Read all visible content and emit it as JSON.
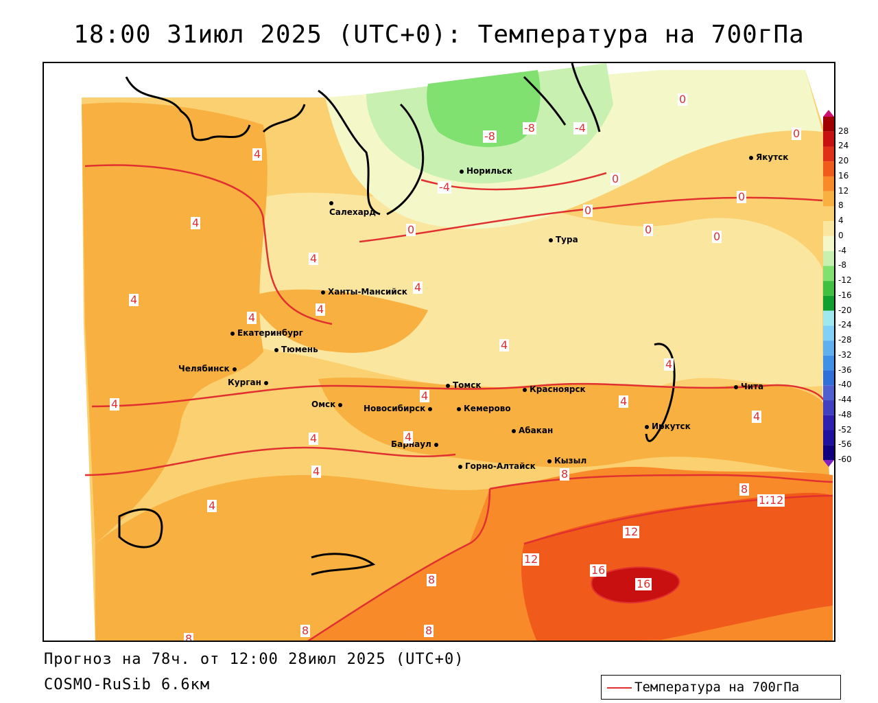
{
  "header": {
    "title": "18:00 31июл 2025 (UTC+0): Температура на 700гПа"
  },
  "footer": {
    "forecast": "Прогноз на 78ч. от 12:00 28июл 2025 (UTC+0)",
    "model": "COSMO-RuSib 6.6км"
  },
  "legend": {
    "label": "Температура на 700гПа",
    "line_color": "#e03030"
  },
  "colorbar": {
    "labels": [
      "28",
      "24",
      "20",
      "16",
      "12",
      "8",
      "4",
      "0",
      "-4",
      "-8",
      "-12",
      "-16",
      "-20",
      "-24",
      "-28",
      "-32",
      "-36",
      "-40",
      "-44",
      "-48",
      "-52",
      "-56",
      "-60"
    ],
    "colors": [
      "#a00000",
      "#c81010",
      "#e03018",
      "#f05a1a",
      "#f88a2a",
      "#f8b040",
      "#fad070",
      "#fbe6a0",
      "#f4f8c8",
      "#c8f0b0",
      "#80e070",
      "#40c040",
      "#10a030",
      "#a0e8f0",
      "#80d0f8",
      "#60b0f0",
      "#4090e8",
      "#3070d8",
      "#5060d0",
      "#4040c0",
      "#3020b0",
      "#2010a0",
      "#100080"
    ]
  },
  "cities": [
    {
      "name": "Норильск"
    },
    {
      "name": "Якутск"
    },
    {
      "name": "Салехард"
    },
    {
      "name": "Тура"
    },
    {
      "name": "Ханты-Мансийск"
    },
    {
      "name": "Екатеринбург"
    },
    {
      "name": "Тюмень"
    },
    {
      "name": "Челябинск"
    },
    {
      "name": "Курган"
    },
    {
      "name": "Омск"
    },
    {
      "name": "Новосибирск"
    },
    {
      "name": "Томск"
    },
    {
      "name": "Красноярск"
    },
    {
      "name": "Кемерово"
    },
    {
      "name": "Абакан"
    },
    {
      "name": "Барнаул"
    },
    {
      "name": "Горно-Алтайск"
    },
    {
      "name": "Кызыл"
    },
    {
      "name": "Иркутск"
    },
    {
      "name": "Чита"
    }
  ],
  "isolines": [
    "4",
    "4",
    "4",
    "4",
    "4",
    "4",
    "4",
    "4",
    "4",
    "4",
    "4",
    "4",
    "4",
    "4",
    "4",
    "4",
    "4",
    "0",
    "0",
    "0",
    "0",
    "0",
    "0",
    "0",
    "0",
    "-4",
    "-4",
    "-8",
    "-8",
    "8",
    "8",
    "8",
    "8",
    "8",
    "8",
    "12",
    "12",
    "12",
    "12",
    "16",
    "16"
  ]
}
